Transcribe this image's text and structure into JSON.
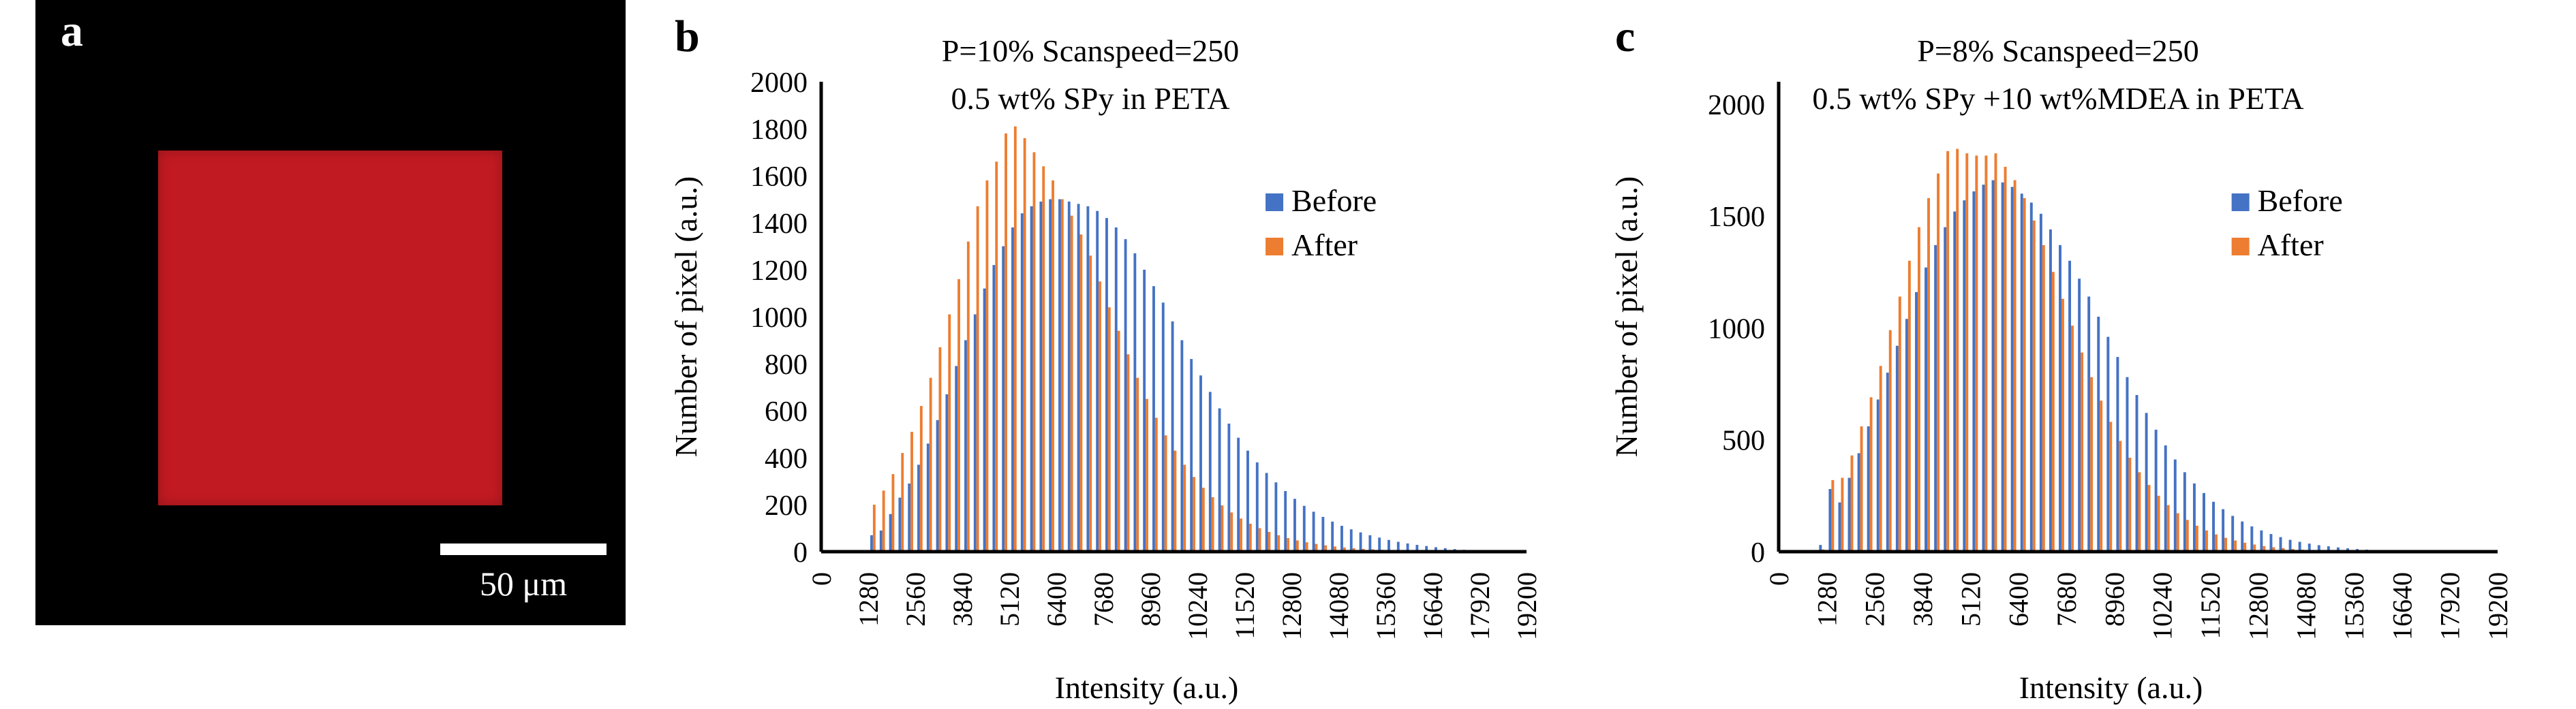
{
  "panel_a": {
    "letter": "a",
    "scale_bar_label": "50 μm",
    "colors": {
      "background": "#000000",
      "square": "#c21a22",
      "scale_bar": "#ffffff"
    }
  },
  "chart_data": [
    {
      "panel_letter": "b",
      "type": "bar",
      "title": "P=10% Scanspeed=250",
      "subtitle": "0.5 wt% SPy in PETA",
      "xlabel": "Intensity (a.u.)",
      "ylabel": "Number of pixel (a.u.)",
      "xlim": [
        0,
        19200
      ],
      "ylim": [
        0,
        2000
      ],
      "yticks": [
        0,
        200,
        400,
        600,
        800,
        1000,
        1200,
        1400,
        1600,
        1800,
        2000
      ],
      "xticks": [
        0,
        1280,
        2560,
        3840,
        5120,
        6400,
        7680,
        8960,
        10240,
        11520,
        12800,
        14080,
        15360,
        16640,
        17920,
        19200
      ],
      "bin_width": 256,
      "x": [
        1280,
        1536,
        1792,
        2048,
        2304,
        2560,
        2816,
        3072,
        3328,
        3584,
        3840,
        4096,
        4352,
        4608,
        4864,
        5120,
        5376,
        5632,
        5888,
        6144,
        6400,
        6656,
        6912,
        7168,
        7424,
        7680,
        7936,
        8192,
        8448,
        8704,
        8960,
        9216,
        9472,
        9728,
        9984,
        10240,
        10496,
        10752,
        11008,
        11264,
        11520,
        11776,
        12032,
        12288,
        12544,
        12800,
        13056,
        13312,
        13568,
        13824,
        14080,
        14336,
        14592,
        14848,
        15104,
        15360,
        15616,
        15872,
        16128,
        16384,
        16640,
        16896,
        17152,
        17408,
        17664
      ],
      "series": [
        {
          "name": "Before",
          "color": "#4472c4",
          "values": [
            70,
            90,
            160,
            230,
            290,
            370,
            460,
            560,
            670,
            790,
            900,
            1010,
            1120,
            1220,
            1300,
            1380,
            1440,
            1470,
            1490,
            1500,
            1500,
            1490,
            1480,
            1470,
            1450,
            1420,
            1380,
            1330,
            1270,
            1200,
            1130,
            1060,
            980,
            900,
            820,
            750,
            680,
            610,
            545,
            485,
            430,
            380,
            335,
            295,
            258,
            225,
            195,
            170,
            148,
            128,
            110,
            95,
            82,
            70,
            60,
            50,
            42,
            35,
            29,
            24,
            19,
            15,
            11,
            8,
            6
          ]
        },
        {
          "name": "After",
          "color": "#ed7d31",
          "values": [
            200,
            260,
            330,
            420,
            510,
            620,
            740,
            870,
            1010,
            1160,
            1320,
            1470,
            1580,
            1660,
            1780,
            1810,
            1760,
            1700,
            1640,
            1580,
            1500,
            1430,
            1350,
            1260,
            1150,
            1040,
            940,
            840,
            740,
            650,
            570,
            495,
            430,
            370,
            318,
            272,
            232,
            197,
            167,
            141,
            119,
            100,
            84,
            70,
            58,
            48,
            40,
            33,
            27,
            22,
            18,
            15,
            12,
            10,
            8,
            6,
            5,
            4,
            3,
            3,
            2,
            2,
            1,
            1,
            1
          ]
        }
      ],
      "legend": "right"
    },
    {
      "panel_letter": "c",
      "type": "bar",
      "title": "P=8% Scanspeed=250",
      "subtitle": "0.5 wt% SPy +10  wt%MDEA in PETA",
      "xlabel": "Intensity (a.u.)",
      "ylabel": "Number of pixel (a.u.)",
      "xlim": [
        0,
        19200
      ],
      "ylim": [
        0,
        2100
      ],
      "yticks": [
        0,
        500,
        1000,
        1500,
        2000
      ],
      "xticks": [
        0,
        1280,
        2560,
        3840,
        5120,
        6400,
        7680,
        8960,
        10240,
        11520,
        12800,
        14080,
        15360,
        16640,
        17920,
        19200
      ],
      "bin_width": 256,
      "x": [
        1024,
        1280,
        1536,
        1792,
        2048,
        2304,
        2560,
        2816,
        3072,
        3328,
        3584,
        3840,
        4096,
        4352,
        4608,
        4864,
        5120,
        5376,
        5632,
        5888,
        6144,
        6400,
        6656,
        6912,
        7168,
        7424,
        7680,
        7936,
        8192,
        8448,
        8704,
        8960,
        9216,
        9472,
        9728,
        9984,
        10240,
        10496,
        10752,
        11008,
        11264,
        11520,
        11776,
        12032,
        12288,
        12544,
        12800,
        13056,
        13312,
        13568,
        13824,
        14080,
        14336,
        14592,
        14848,
        15104,
        15360,
        15616,
        15872
      ],
      "series": [
        {
          "name": "Before",
          "color": "#4472c4",
          "values": [
            30,
            280,
            220,
            330,
            440,
            560,
            680,
            800,
            920,
            1040,
            1160,
            1270,
            1370,
            1450,
            1520,
            1570,
            1610,
            1640,
            1660,
            1650,
            1630,
            1600,
            1560,
            1510,
            1440,
            1370,
            1300,
            1220,
            1140,
            1050,
            960,
            870,
            780,
            700,
            620,
            545,
            475,
            412,
            355,
            305,
            262,
            223,
            190,
            160,
            135,
            113,
            95,
            79,
            65,
            53,
            44,
            36,
            29,
            24,
            19,
            15,
            12,
            9,
            7
          ]
        },
        {
          "name": "After",
          "color": "#ed7d31",
          "values": [
            10,
            320,
            330,
            430,
            560,
            690,
            830,
            990,
            1140,
            1300,
            1450,
            1580,
            1690,
            1790,
            1800,
            1780,
            1770,
            1770,
            1780,
            1720,
            1660,
            1580,
            1480,
            1370,
            1250,
            1130,
            1010,
            890,
            780,
            675,
            580,
            495,
            420,
            355,
            298,
            250,
            208,
            172,
            142,
            116,
            95,
            77,
            62,
            50,
            40,
            32,
            25,
            20,
            16,
            12,
            9,
            7,
            5,
            4,
            3,
            2,
            2,
            1,
            1
          ]
        }
      ],
      "legend": "right"
    }
  ]
}
